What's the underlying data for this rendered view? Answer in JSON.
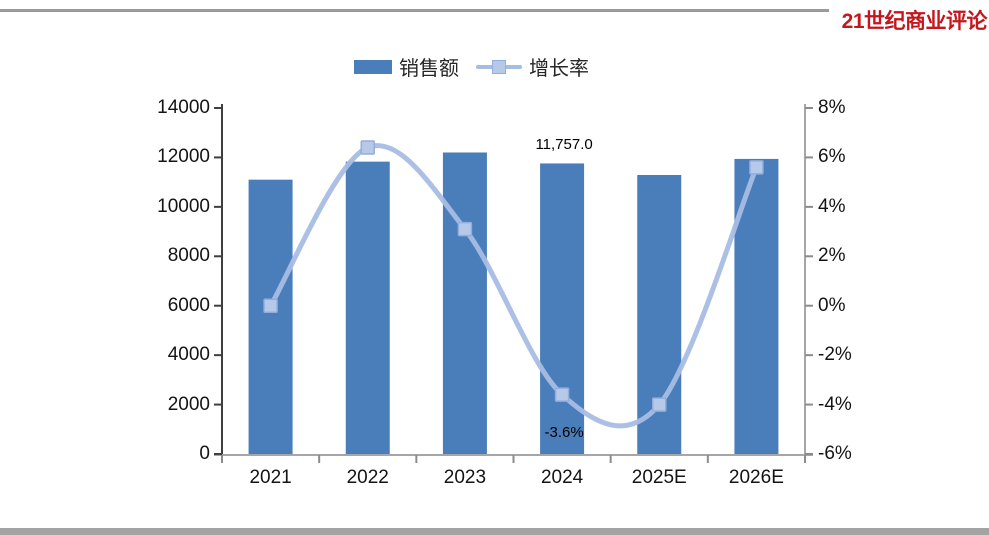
{
  "logo": {
    "text": "21世纪商业评论",
    "color": "#c4161c"
  },
  "legend": {
    "sales_label": "销售额",
    "growth_label": "增长率"
  },
  "chart_data": {
    "type": "bar",
    "subtype": "bar+smooth-line-combo",
    "title": "",
    "categories": [
      "2021",
      "2022",
      "2023",
      "2024",
      "2025E",
      "2026E"
    ],
    "series": [
      {
        "name": "销售额",
        "type": "bar",
        "axis": "left",
        "values": [
          11100,
          11830,
          12200,
          11757,
          11290,
          11940
        ]
      },
      {
        "name": "增长率",
        "type": "line",
        "axis": "right",
        "values_pct": [
          0.0,
          6.4,
          3.1,
          -3.6,
          -4.0,
          5.6
        ]
      }
    ],
    "left_axis": {
      "min": 0,
      "max": 14000,
      "ticks": [
        "0",
        "2000",
        "4000",
        "6000",
        "8000",
        "10000",
        "12000",
        "14000"
      ]
    },
    "right_axis": {
      "min": -6,
      "max": 8,
      "ticks": [
        "-6%",
        "-4%",
        "-2%",
        "0%",
        "2%",
        "4%",
        "6%",
        "8%"
      ]
    },
    "data_labels": [
      {
        "text": "11,757.0",
        "category": "2024",
        "position": "above-bar"
      },
      {
        "text": "-3.6%",
        "category": "2024",
        "position": "below-point"
      }
    ],
    "grid": false,
    "legend_position": "top",
    "colors": {
      "bar": "#4a7ebb",
      "line": "#a6bde3",
      "marker_fill": "#b7c9e9",
      "marker_stroke": "#93addc",
      "left_axis_line": "#3f3f3f",
      "right_axis_line": "#a6a6a6",
      "x_axis_line": "#a6a6a6",
      "tick_mark": "#8c8c8c"
    }
  }
}
